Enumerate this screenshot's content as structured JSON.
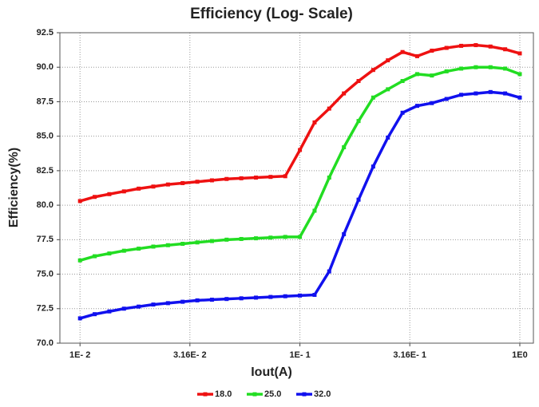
{
  "chart_data": {
    "type": "line",
    "title": "Efficiency (Log- Scale)",
    "x_label": "Iout(A)",
    "y_label": "Efficiency(%)",
    "x": [
      0.01,
      0.01166,
      0.01359,
      0.01585,
      0.01848,
      0.02154,
      0.02512,
      0.02929,
      0.03415,
      0.03981,
      0.04642,
      0.05412,
      0.0631,
      0.07356,
      0.08577,
      0.1,
      0.1166,
      0.1359,
      0.1585,
      0.1848,
      0.2154,
      0.2512,
      0.2929,
      0.3415,
      0.3981,
      0.4642,
      0.5412,
      0.631,
      0.7356,
      0.8577,
      1
    ],
    "series": [
      {
        "name": "18.0",
        "color": "#ee1111",
        "values": [
          80.3,
          80.6,
          80.8,
          81.0,
          81.2,
          81.35,
          81.5,
          81.6,
          81.7,
          81.8,
          81.9,
          81.95,
          82.0,
          82.05,
          82.1,
          84.0,
          86.0,
          87.0,
          88.1,
          89.0,
          89.8,
          90.5,
          91.1,
          90.8,
          91.2,
          91.4,
          91.55,
          91.6,
          91.5,
          91.3,
          91.0
        ]
      },
      {
        "name": "25.0",
        "color": "#22dd22",
        "values": [
          76.0,
          76.3,
          76.5,
          76.7,
          76.85,
          77.0,
          77.1,
          77.2,
          77.3,
          77.4,
          77.5,
          77.55,
          77.6,
          77.65,
          77.7,
          77.7,
          79.6,
          82.0,
          84.2,
          86.1,
          87.8,
          88.4,
          89.0,
          89.5,
          89.4,
          89.7,
          89.9,
          90.0,
          90.0,
          89.9,
          89.5
        ]
      },
      {
        "name": "32.0",
        "color": "#1111ee",
        "values": [
          71.8,
          72.1,
          72.3,
          72.5,
          72.65,
          72.8,
          72.9,
          73.0,
          73.1,
          73.15,
          73.2,
          73.25,
          73.3,
          73.35,
          73.4,
          73.45,
          73.5,
          75.2,
          77.9,
          80.4,
          82.8,
          84.9,
          86.7,
          87.2,
          87.4,
          87.7,
          88.0,
          88.1,
          88.2,
          88.1,
          87.8
        ]
      }
    ],
    "xscale": "log",
    "xlim": [
      0.0081,
      1.153
    ],
    "xticks": [
      {
        "value": 0.01,
        "label": "1E- 2"
      },
      {
        "value": 0.0316,
        "label": "3.16E- 2"
      },
      {
        "value": 0.1,
        "label": "1E- 1"
      },
      {
        "value": 0.316,
        "label": "3.16E- 1"
      },
      {
        "value": 1,
        "label": "1E0"
      }
    ],
    "ylim": [
      70,
      92.5
    ],
    "yticks": [
      {
        "value": 70,
        "label": "70.0"
      },
      72.5,
      {
        "value": 75,
        "label": "75.0"
      },
      77.5,
      {
        "value": 80,
        "label": "80.0"
      },
      82.5,
      {
        "value": 85,
        "label": "85.0"
      },
      87.5,
      {
        "value": 90,
        "label": "90.0"
      },
      92.5
    ],
    "grid": true,
    "legend": "bottom"
  }
}
